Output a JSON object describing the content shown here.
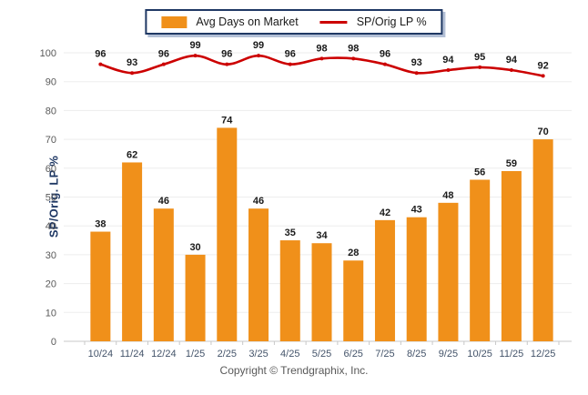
{
  "legend": {
    "bar_label": "Avg Days on Market",
    "line_label": "SP/Orig LP %"
  },
  "footer": "Copyright © Trendgraphix, Inc.",
  "colors": {
    "bar": "#F0901A",
    "line": "#CC0000",
    "axis_title": "#1F3864",
    "value_label": "#1A1A1A",
    "x_tick_label": "#44546A",
    "y_tick_label": "#595959",
    "gridline": "#EDEDED",
    "baseline": "#C8C8C8",
    "tick_mark": "#C8C8C8",
    "footer_text": "#595959",
    "legend_border": "#1F3864",
    "legend_shadow": "#B3C0D6"
  },
  "chart_data": {
    "type": "bar",
    "categories": [
      "10/24",
      "11/24",
      "12/24",
      "1/25",
      "2/25",
      "3/25",
      "4/25",
      "5/25",
      "6/25",
      "7/25",
      "8/25",
      "9/25",
      "10/25",
      "11/25",
      "12/25"
    ],
    "series": [
      {
        "name": "Avg Days on Market",
        "type": "bar",
        "values": [
          38,
          62,
          46,
          30,
          74,
          46,
          35,
          34,
          28,
          42,
          43,
          48,
          56,
          59,
          70
        ]
      },
      {
        "name": "SP/Orig LP %",
        "type": "line",
        "values": [
          96,
          93,
          96,
          99,
          96,
          99,
          96,
          98,
          98,
          96,
          93,
          94,
          95,
          94,
          92
        ]
      }
    ],
    "title": "",
    "xlabel": "",
    "ylabel": "SP/Orig. LP %",
    "ylim": [
      0,
      100
    ],
    "ytick_step": 10,
    "grid": true,
    "legend_position": "top-center",
    "data_labels": true
  }
}
